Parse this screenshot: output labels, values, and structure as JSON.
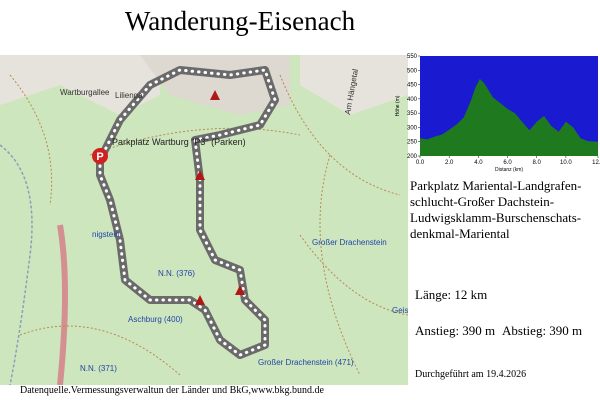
{
  "title": "Wanderung-Eisenach",
  "map": {
    "labels": [
      {
        "text": "Parkplatz Wartburg \"P3\" (Parken)"
      },
      {
        "text": "Großer Drachenstein"
      },
      {
        "text": "N.N. (376)"
      },
      {
        "text": "Aschburg (400)"
      },
      {
        "text": "Großer Drachenstein (471)"
      },
      {
        "text": "N.N. (371)"
      },
      {
        "text": "Am Hängetal"
      },
      {
        "text": "Wartburgallee"
      },
      {
        "text": "Lilienga"
      },
      {
        "text": "nigstein"
      },
      {
        "text": "Geis"
      }
    ],
    "marker": "P"
  },
  "chart_data": {
    "type": "area",
    "x": [
      0,
      0.5,
      1,
      1.5,
      2,
      2.5,
      3,
      3.5,
      3.8,
      4.1,
      4.4,
      4.7,
      5,
      5.5,
      6,
      6.5,
      7,
      7.5,
      8,
      8.5,
      9,
      9.5,
      10,
      10.5,
      11,
      11.5,
      12.2
    ],
    "series": [
      {
        "color": "#1f7a1f",
        "values": [
          262,
          258,
          268,
          275,
          292,
          310,
          335,
          395,
          440,
          470,
          455,
          430,
          405,
          385,
          365,
          350,
          320,
          290,
          320,
          340,
          305,
          285,
          320,
          300,
          262,
          252,
          250
        ]
      }
    ],
    "xlabel": "Distanz  (km)",
    "ylabel": "Höhe (m)",
    "xlim": [
      0,
      12.2
    ],
    "ylim": [
      200,
      550
    ],
    "xticks": [
      {
        "value": 0,
        "label": "0.0"
      },
      {
        "value": 2,
        "label": "2.0"
      },
      {
        "value": 4,
        "label": "4.0"
      },
      {
        "value": 6,
        "label": "6.0"
      },
      {
        "value": 8,
        "label": "8.0"
      },
      {
        "value": 10,
        "label": "10.0"
      },
      {
        "value": 12.2,
        "label": "12.2"
      }
    ],
    "yticks": [
      200,
      250,
      300,
      350,
      400,
      450,
      500,
      550
    ],
    "background": "#1a1ad0"
  },
  "route": [
    "Parkplatz Mariental-Landgrafen-",
    "schlucht-Großer Dachstein-",
    "Ludwigsklamm-Burschenschats-",
    "denkmal-Mariental"
  ],
  "stats": {
    "length": "Länge: 12 km",
    "ascent": "Anstieg: 390 m",
    "descent": "Abstieg: 390 m",
    "date": "Durchgeführt am 19.4.2026"
  },
  "source": "Datenquelle.Vermessungsverwaltun der Länder und BkG,www.bkg.bund.de"
}
